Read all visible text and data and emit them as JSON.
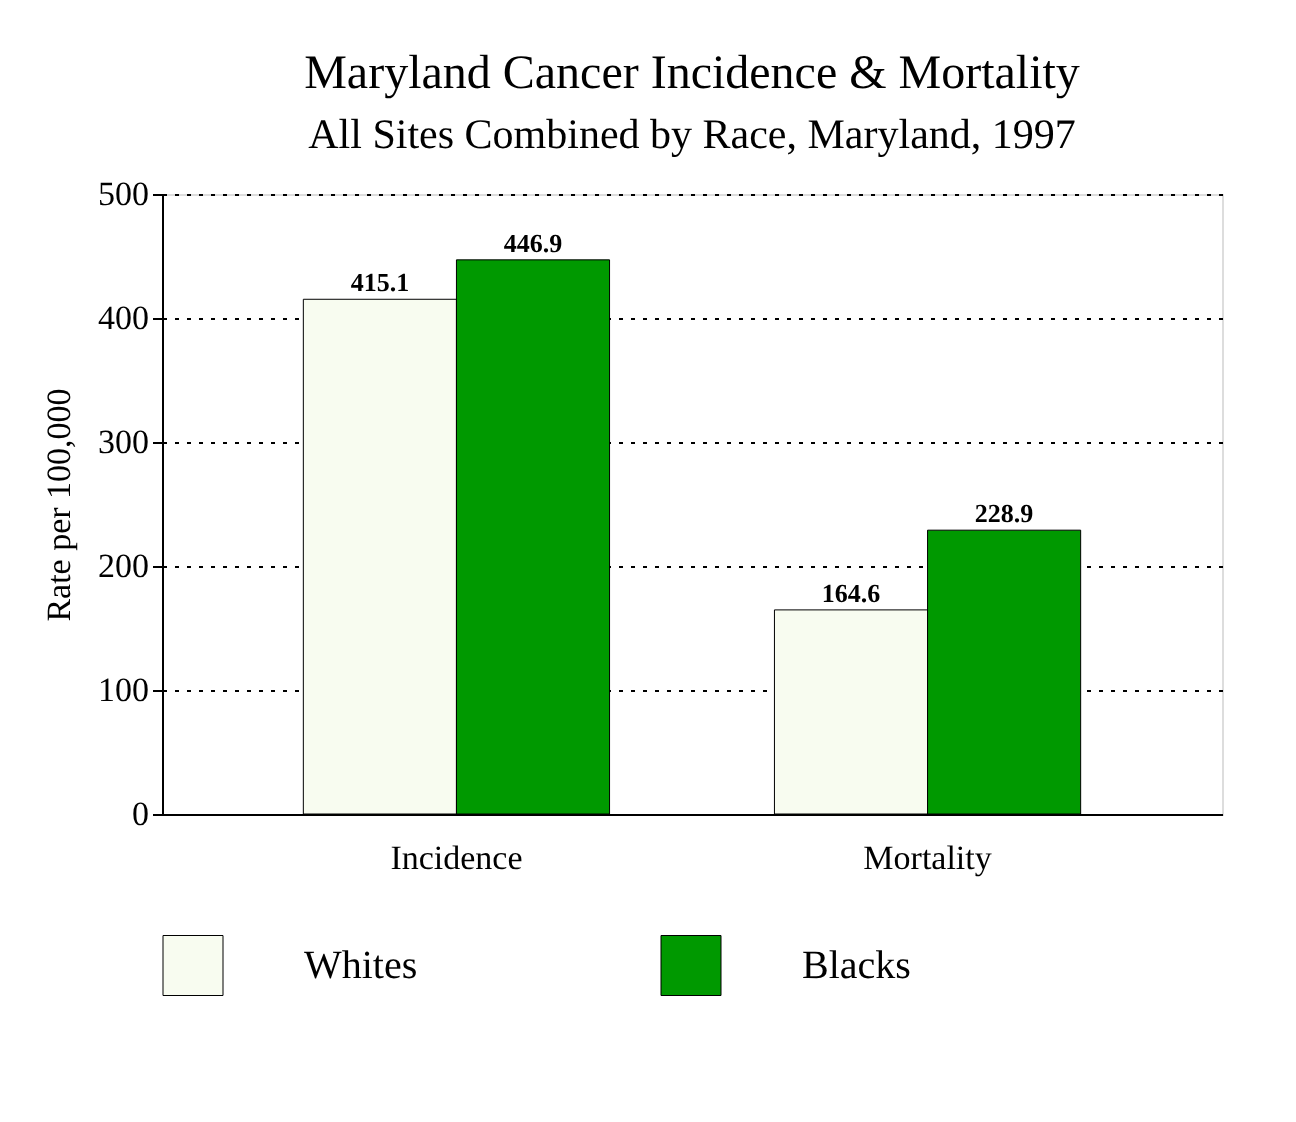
{
  "chart_data": {
    "type": "bar",
    "title": "Maryland Cancer Incidence & Mortality",
    "subtitle": "All Sites Combined by Race, Maryland, 1997",
    "ylabel": "Rate per 100,000",
    "categories": [
      "Incidence",
      "Mortality"
    ],
    "series": [
      {
        "name": "Whites",
        "color": "#f8fcf0",
        "values": [
          415.1,
          164.6
        ]
      },
      {
        "name": "Blacks",
        "color": "#009900",
        "values": [
          446.9,
          228.9
        ]
      }
    ],
    "ylim": [
      0,
      500
    ],
    "yticks": [
      0,
      100,
      200,
      300,
      400,
      500
    ],
    "grid": "y",
    "legend": "bottom",
    "data_labels": true
  }
}
